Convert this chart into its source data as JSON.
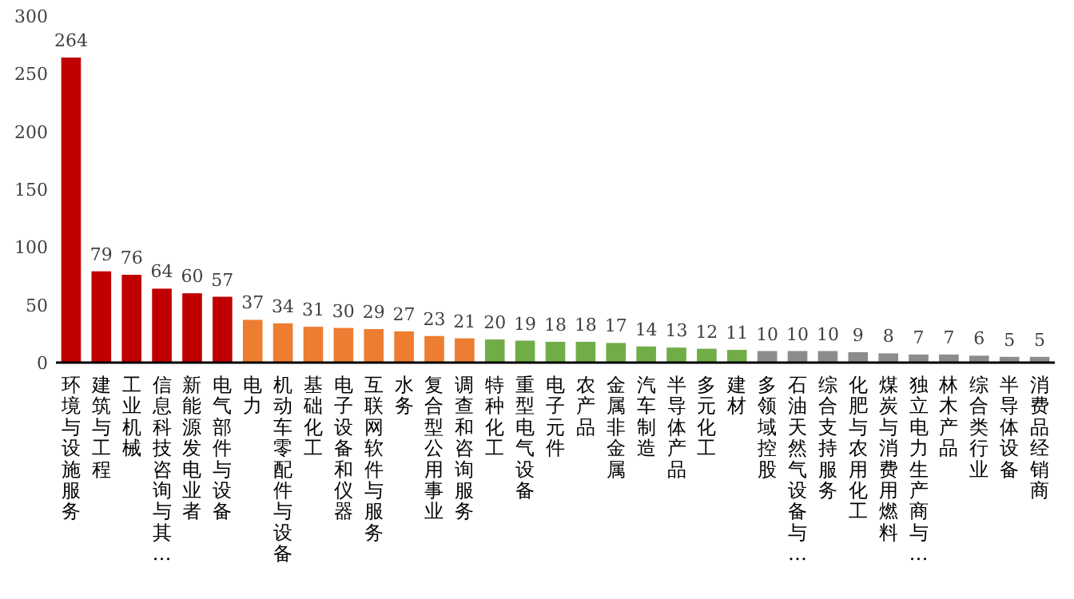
{
  "chart_data": {
    "type": "bar",
    "categories": [
      "环境与设施服务",
      "建筑与工程",
      "工业机械",
      "信息科技咨询与其…",
      "新能源发电业者",
      "电气部件与设备",
      "电力",
      "机动车零配件与设备",
      "基础化工",
      "电子设备和仪器",
      "互联网软件与服务",
      "水务",
      "复合型公用事业",
      "调查和咨询服务",
      "特种化工",
      "重型电气设备",
      "电子元件",
      "农产品",
      "金属非金属",
      "汽车制造",
      "半导体产品",
      "多元化工",
      "建材",
      "多领域控股",
      "石油天然气设备与…",
      "综合支持服务",
      "化肥与农用化工",
      "煤炭与消费用燃料",
      "独立电力生产商与…",
      "林木产品",
      "综合类行业",
      "半导体设备",
      "消费品经销商"
    ],
    "values": [
      264,
      79,
      76,
      64,
      60,
      57,
      37,
      34,
      31,
      30,
      29,
      27,
      23,
      21,
      20,
      19,
      18,
      18,
      17,
      14,
      13,
      12,
      11,
      10,
      10,
      10,
      9,
      8,
      7,
      7,
      6,
      5,
      5
    ],
    "colors": [
      "#c00000",
      "#c00000",
      "#c00000",
      "#c00000",
      "#c00000",
      "#c00000",
      "#ed7d31",
      "#ed7d31",
      "#ed7d31",
      "#ed7d31",
      "#ed7d31",
      "#ed7d31",
      "#ed7d31",
      "#ed7d31",
      "#70ad47",
      "#70ad47",
      "#70ad47",
      "#70ad47",
      "#70ad47",
      "#70ad47",
      "#70ad47",
      "#70ad47",
      "#70ad47",
      "#8c8c8c",
      "#8c8c8c",
      "#8c8c8c",
      "#8c8c8c",
      "#8c8c8c",
      "#8c8c8c",
      "#8c8c8c",
      "#8c8c8c",
      "#8c8c8c",
      "#8c8c8c"
    ],
    "ylim": [
      0,
      300
    ],
    "yticks": [
      0,
      50,
      100,
      150,
      200,
      250,
      300
    ],
    "data_labels": true
  }
}
